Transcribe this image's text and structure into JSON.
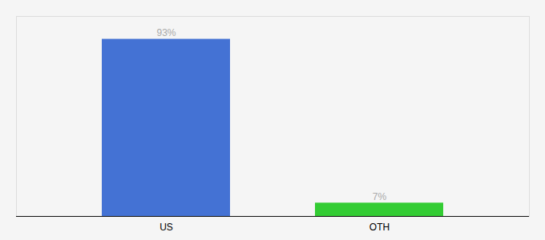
{
  "chart_data": {
    "type": "bar",
    "categories": [
      "US",
      "OTH"
    ],
    "values": [
      93,
      7
    ],
    "colors": [
      "#4472d4",
      "#33cc33"
    ],
    "value_labels": [
      "93%",
      "7%"
    ],
    "data_labels": true,
    "ylim": [
      0,
      105
    ],
    "grid": false,
    "tick_labels": "x"
  }
}
